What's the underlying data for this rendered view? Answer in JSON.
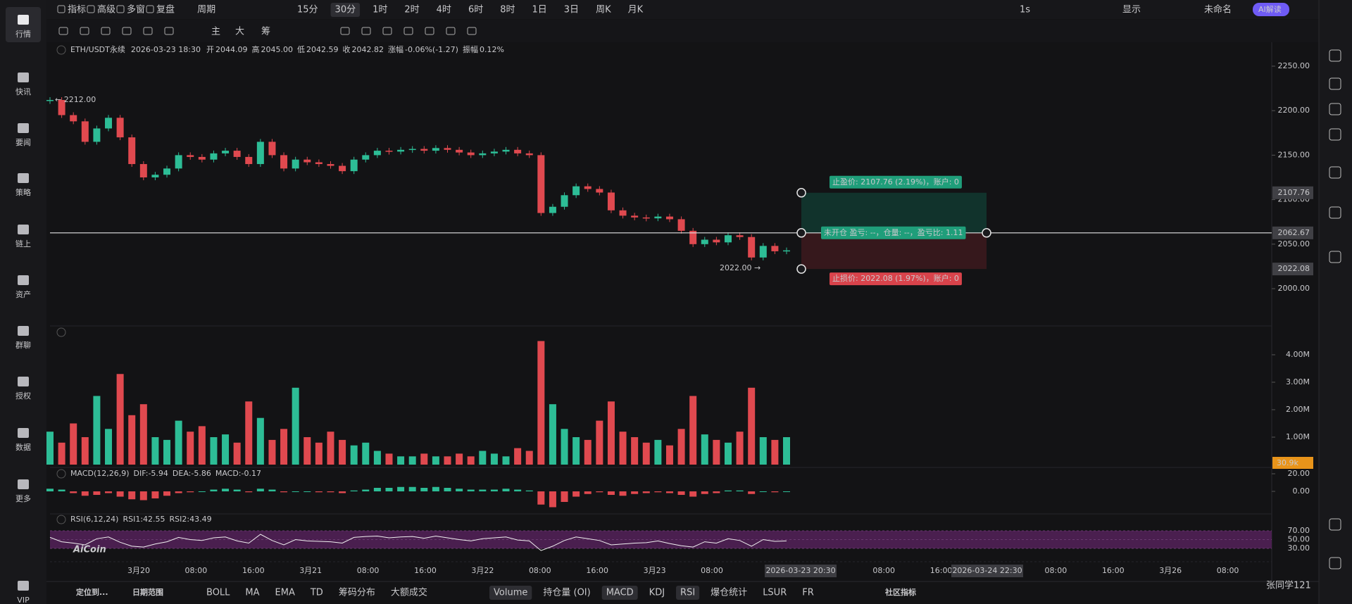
{
  "sidebar": [
    "行情",
    "快讯",
    "要闻",
    "策略",
    "链上",
    "资产",
    "群聊",
    "授权",
    "数据",
    "更多",
    "VIP"
  ],
  "topbar": {
    "left": [
      "指标",
      "高级",
      "多窗",
      "复盘"
    ],
    "period": "周期",
    "intervals": [
      "15分",
      "30分",
      "1时",
      "2时",
      "4时",
      "6时",
      "8时",
      "1日",
      "3日",
      "周K",
      "月K"
    ],
    "active_interval": 1,
    "right": [
      "1s",
      "显示",
      "未命名",
      "AI解读"
    ]
  },
  "drawbar": [
    "主",
    "大",
    "筹"
  ],
  "chart_data": {
    "type": "candlestick",
    "symbol": "ETH/USDT永续",
    "time": "2026-03-23 18:30",
    "ohlc_labels": [
      "开",
      "高",
      "低",
      "收"
    ],
    "ohlc_values": [
      "2044.09",
      "2045.00",
      "2042.59",
      "2042.82"
    ],
    "change_label": "涨幅",
    "change": "-0.06%(-1.27)",
    "amplitude_label": "振幅",
    "amplitude": "0.12%",
    "closes": [
      2212,
      2195,
      2188,
      2165,
      2180,
      2192,
      2170,
      2140,
      2125,
      2128,
      2135,
      2150,
      2148,
      2145,
      2152,
      2155,
      2148,
      2140,
      2165,
      2150,
      2135,
      2145,
      2142,
      2140,
      2138,
      2132,
      2145,
      2150,
      2155,
      2154,
      2156,
      2157,
      2155,
      2158,
      2156,
      2153,
      2150,
      2152,
      2154,
      2156,
      2152,
      2150,
      2085,
      2092,
      2105,
      2115,
      2112,
      2108,
      2088,
      2082,
      2080,
      2079,
      2081,
      2078,
      2065,
      2050,
      2055,
      2052,
      2060,
      2058,
      2035,
      2048,
      2042,
      2043
    ],
    "colors": {
      "up": "#2dbd96",
      "down": "#e0494f"
    },
    "ylim": [
      1958.1,
      2275.3
    ],
    "yticks": [
      {
        "value": 2250,
        "label": "2250.00"
      },
      {
        "value": 2200,
        "label": "2200.00"
      },
      {
        "value": 2150,
        "label": "2150.00"
      },
      {
        "value": 2100,
        "label": "2100.00"
      },
      {
        "value": 2050,
        "label": "2050.00"
      },
      {
        "value": 2000,
        "label": "2000.00"
      }
    ],
    "max_label": "← 2212.00",
    "min_label": "2022.00 →",
    "order": {
      "take_profit": "止盈价: 2107.76 (2.19%)，账户: 0",
      "position": "未开仓 盈亏: --，仓量: --，盈亏比: 1.11",
      "stop_loss": "止损价: 2022.08 (1.97%)，账户: 0",
      "tp_price": 2107.76,
      "entry_price": 2062.67,
      "sl_price": 2022.08
    },
    "time_axis": [
      "3月20",
      "08:00",
      "16:00",
      "3月21",
      "08:00",
      "16:00",
      "3月22",
      "08:00",
      "16:00",
      "3月23",
      "08:00",
      null,
      null,
      "08:00",
      "16:00",
      null,
      "08:00",
      "16:00",
      "3月26",
      "08:00"
    ],
    "crosshair_times": [
      "2026-03-23 20:30",
      "2026-03-24 22:30"
    ]
  },
  "volume": {
    "values": [
      1.2,
      0.8,
      1.5,
      1.0,
      2.5,
      1.3,
      3.3,
      1.8,
      2.2,
      1.0,
      0.9,
      1.6,
      1.2,
      1.4,
      1.0,
      1.1,
      0.8,
      2.3,
      1.7,
      0.9,
      1.3,
      2.8,
      1.0,
      0.8,
      1.2,
      0.9,
      0.7,
      0.8,
      0.5,
      0.4,
      0.3,
      0.3,
      0.4,
      0.3,
      0.3,
      0.4,
      0.3,
      0.5,
      0.4,
      0.3,
      0.6,
      0.5,
      4.5,
      2.2,
      1.3,
      1.0,
      0.9,
      1.6,
      2.3,
      1.2,
      1.0,
      0.8,
      0.9,
      0.7,
      1.3,
      2.5,
      1.1,
      0.9,
      0.8,
      1.2,
      2.8,
      1.0,
      0.9,
      1.0
    ],
    "ylim": [
      0,
      5.05
    ],
    "yticks": [
      {
        "value": 4,
        "label": "4.00M"
      },
      {
        "value": 3,
        "label": "3.00M"
      },
      {
        "value": 2,
        "label": "2.00M"
      },
      {
        "value": 1,
        "label": "1.00M"
      }
    ],
    "current": "30.9k"
  },
  "macd": {
    "title": "MACD(12,26,9)",
    "dif": "DIF:-5.94",
    "dea": "DEA:-5.86",
    "macd": "MACD:-0.17",
    "values": [
      3,
      2,
      -2,
      -5,
      -4,
      -2,
      -6,
      -9,
      -10,
      -8,
      -5,
      -2,
      -1,
      0,
      2,
      3,
      2,
      -1,
      3,
      2,
      -1,
      0,
      0,
      -1,
      -1,
      -2,
      1,
      2,
      4,
      4,
      5,
      5,
      4,
      5,
      4,
      3,
      2,
      2,
      2,
      3,
      2,
      1,
      -15,
      -18,
      -12,
      -6,
      -3,
      -1,
      -4,
      -5,
      -3,
      -2,
      -1,
      -2,
      -4,
      -6,
      -3,
      -2,
      1,
      1,
      -3,
      0,
      -1,
      0
    ],
    "ylim": [
      -25.6,
      27.2
    ],
    "yticks": [
      {
        "value": 20,
        "label": "20.00"
      },
      {
        "value": 0,
        "label": "0.00"
      }
    ]
  },
  "rsi": {
    "title": "RSI(6,12,24)",
    "rsi1": "RSI1:42.55",
    "rsi2": "RSI2:43.49",
    "values": [
      55,
      45,
      42,
      38,
      52,
      56,
      44,
      35,
      33,
      40,
      45,
      55,
      50,
      48,
      54,
      56,
      47,
      42,
      62,
      48,
      38,
      50,
      47,
      46,
      45,
      42,
      55,
      57,
      58,
      54,
      56,
      57,
      53,
      58,
      54,
      50,
      47,
      52,
      54,
      56,
      49,
      47,
      25,
      35,
      48,
      56,
      52,
      48,
      38,
      40,
      42,
      43,
      47,
      41,
      36,
      33,
      45,
      42,
      52,
      48,
      35,
      50,
      46,
      47
    ],
    "ylim": [
      -0.4,
      108.4
    ],
    "yticks": [
      {
        "value": 70,
        "label": "70.00"
      },
      {
        "value": 50,
        "label": "50.00"
      },
      {
        "value": 30,
        "label": "30.00"
      }
    ]
  },
  "bottombar": {
    "left": [
      "定位到...",
      "日期范围"
    ],
    "tools": [
      "BOLL",
      "MA",
      "EMA",
      "TD",
      "筹码分布",
      "大额成交"
    ],
    "indicators": [
      "Volume",
      "持仓量 (OI)",
      "MACD",
      "KDJ",
      "RSI",
      "爆仓统计",
      "LSUR",
      "FR"
    ],
    "active": [
      0,
      2,
      4
    ],
    "community": "社区指标"
  },
  "watermark": [
    "AiCoin",
    "张同学121"
  ]
}
